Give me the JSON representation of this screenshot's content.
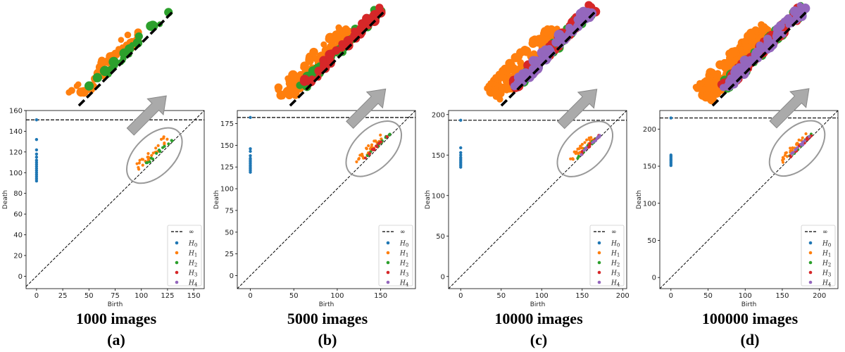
{
  "colors": {
    "H0": "#1f77b4",
    "H1": "#ff7f0e",
    "H2": "#2ca02c",
    "H3": "#d62728",
    "H4": "#9467bd"
  },
  "legend": {
    "inf_label": "∞",
    "entries": [
      "H0",
      "H1",
      "H2",
      "H3",
      "H4"
    ]
  },
  "chart_data": [
    {
      "type": "scatter",
      "xlabel": "Birth",
      "ylabel": "Death",
      "caption": "1000 images",
      "letter": "(a)",
      "xlim": [
        -10,
        160
      ],
      "ylim": [
        -12,
        160
      ],
      "xticks": [
        0,
        25,
        50,
        75,
        100,
        125,
        150
      ],
      "yticks": [
        0,
        20,
        40,
        60,
        80,
        100,
        120,
        140,
        160
      ],
      "infinity_y": 151,
      "h0_points": [
        [
          0,
          151
        ],
        [
          0,
          132
        ],
        [
          0,
          122
        ],
        [
          0,
          118
        ],
        [
          0,
          115
        ],
        [
          0,
          112
        ],
        [
          0,
          110
        ],
        [
          0,
          108
        ],
        [
          0,
          106
        ],
        [
          0,
          104
        ],
        [
          0,
          102
        ],
        [
          0,
          100
        ],
        [
          0,
          98
        ],
        [
          0,
          96
        ],
        [
          0,
          94
        ],
        [
          0,
          92
        ]
      ],
      "cluster": {
        "x_range": [
          95,
          130
        ],
        "max_dim": 2
      }
    },
    {
      "type": "scatter",
      "xlabel": "Birth",
      "ylabel": "Death",
      "caption": "5000 images",
      "letter": "(b)",
      "xlim": [
        -15,
        190
      ],
      "ylim": [
        -15,
        190
      ],
      "xticks": [
        0,
        50,
        100,
        150
      ],
      "yticks": [
        0,
        25,
        50,
        75,
        100,
        125,
        150,
        175
      ],
      "infinity_y": 182,
      "h0_points": [
        [
          0,
          182
        ],
        [
          0,
          146
        ],
        [
          0,
          143
        ],
        [
          0,
          138
        ],
        [
          0,
          135
        ],
        [
          0,
          133
        ],
        [
          0,
          131
        ],
        [
          0,
          129
        ],
        [
          0,
          127
        ],
        [
          0,
          125
        ],
        [
          0,
          123
        ],
        [
          0,
          121
        ],
        [
          0,
          119
        ]
      ],
      "cluster": {
        "x_range": [
          122,
          162
        ],
        "max_dim": 3
      }
    },
    {
      "type": "scatter",
      "xlabel": "Birth",
      "ylabel": "Death",
      "caption": "10000 images",
      "letter": "(c)",
      "xlim": [
        -15,
        205
      ],
      "ylim": [
        -15,
        205
      ],
      "xticks": [
        0,
        50,
        100,
        150,
        200
      ],
      "yticks": [
        0,
        50,
        100,
        150,
        200
      ],
      "infinity_y": 193,
      "h0_points": [
        [
          0,
          193
        ],
        [
          0,
          159
        ],
        [
          0,
          153
        ],
        [
          0,
          150
        ],
        [
          0,
          147
        ],
        [
          0,
          145
        ],
        [
          0,
          143
        ],
        [
          0,
          141
        ],
        [
          0,
          139
        ],
        [
          0,
          137
        ],
        [
          0,
          135
        ]
      ],
      "cluster": {
        "x_range": [
          135,
          172
        ],
        "max_dim": 4
      }
    },
    {
      "type": "scatter",
      "xlabel": "Birth",
      "ylabel": "Death",
      "caption": "100000 images",
      "letter": "(d)",
      "xlim": [
        -15,
        225
      ],
      "ylim": [
        -15,
        225
      ],
      "xticks": [
        0,
        50,
        100,
        150,
        200
      ],
      "yticks": [
        0,
        50,
        100,
        150,
        200
      ],
      "infinity_y": 215,
      "h0_points": [
        [
          0,
          215
        ],
        [
          0,
          165
        ],
        [
          0,
          163
        ],
        [
          0,
          161
        ],
        [
          0,
          159
        ],
        [
          0,
          157
        ],
        [
          0,
          155
        ],
        [
          0,
          153
        ],
        [
          0,
          151
        ]
      ],
      "cluster": {
        "x_range": [
          150,
          190
        ],
        "max_dim": 4
      }
    }
  ]
}
